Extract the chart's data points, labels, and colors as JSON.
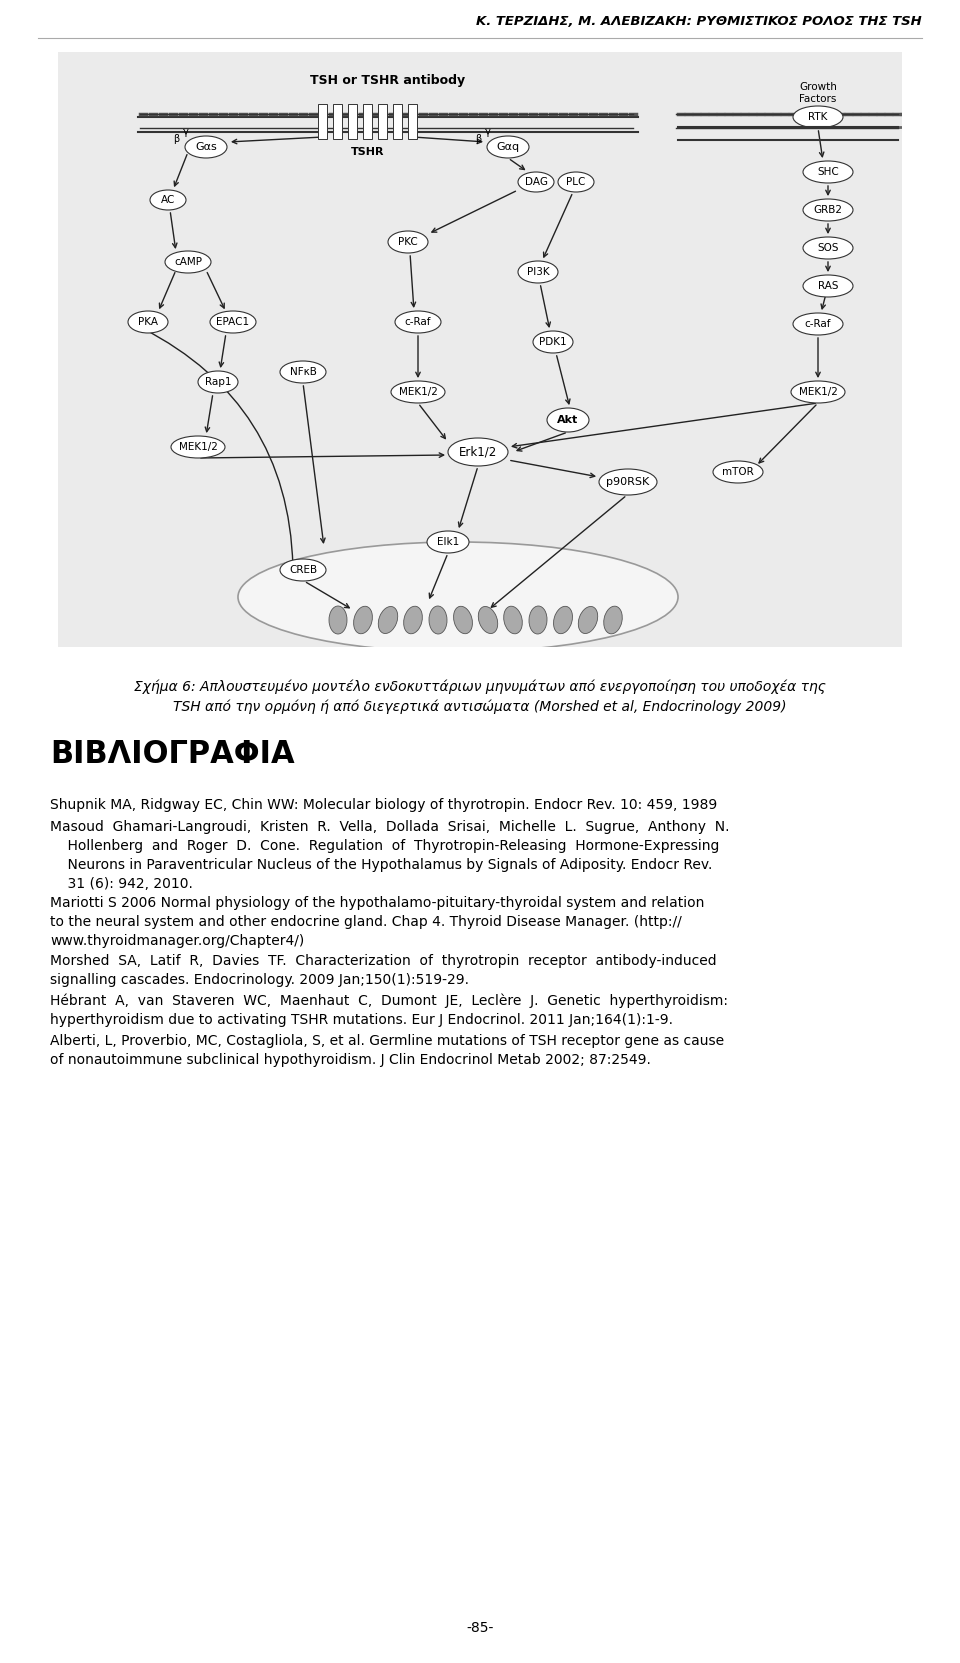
{
  "header": "K. TEPZIΔHΣ, M. AΛEBIΖAKH: PYΘMIΣTIKOΣ POΛOΣ THΣ TSH",
  "page_bg": "#ffffff",
  "header_color": "#000000",
  "header_fontsize": 9.5,
  "diagram_bg": "#ebebeb",
  "caption_text_line1": "Σχήμα 6: Απλουστευμένο μοντέλο ενδοκυττάριων μηνυμάτων από ενεργοποίηση του υποδοχέα της",
  "caption_text_line2": "TSH από την ορμόνη ή από διεγερτικά αντισώματα (Morshed et al, Endocrinology 2009)",
  "caption_fontsize": 10.0,
  "section_title": "ΒΙΒΛΙΟΓΡΑΦΙΑ",
  "section_title_fontsize": 22,
  "ref_fontsize": 10.0,
  "footer_text": "-85-",
  "footer_fontsize": 10,
  "line_color": "#888888",
  "diagram_line_color": "#333333",
  "node_fill": "#ffffff",
  "node_edge": "#333333"
}
